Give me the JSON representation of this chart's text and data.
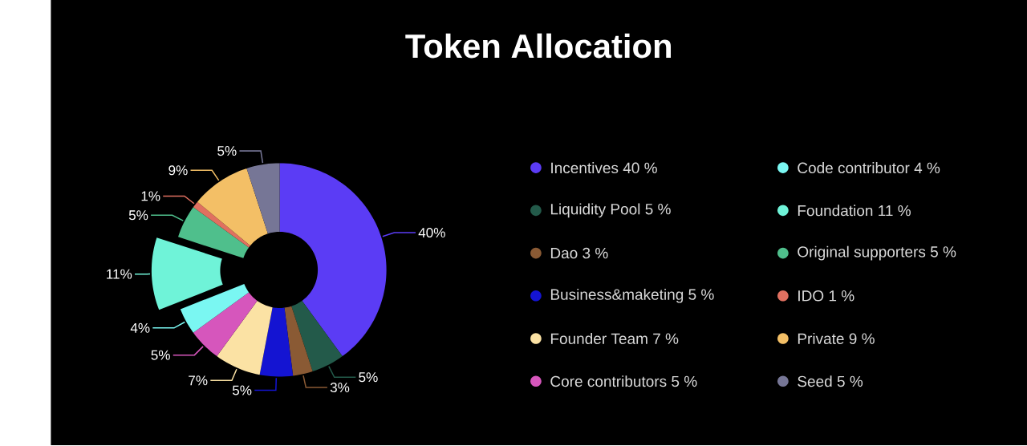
{
  "chart_data": {
    "type": "donut",
    "title": "Token Allocation",
    "categories": [
      "Incentives  40 %",
      "Liquidity Pool  5 %",
      "Dao  3 %",
      "Business&maketing  5 %",
      "Founder Team  7 %",
      "Core contributors  5 %",
      "Code contributor  4 %",
      "Foundation  11 %",
      "Original supporters  5 %",
      "IDO  1 %",
      "Private  9 %",
      "Seed  5 %"
    ],
    "values": [
      40,
      5,
      3,
      5,
      7,
      5,
      4,
      11,
      5,
      1,
      9,
      5
    ],
    "value_labels": [
      "40%",
      "5%",
      "3%",
      "5%",
      "7%",
      "5%",
      "4%",
      "11%",
      "5%",
      "1%",
      "9%",
      "5%"
    ],
    "colors": [
      "#5b3cf5",
      "#235a4a",
      "#8a5a34",
      "#1414d2",
      "#fbe2a4",
      "#d656bc",
      "#7af7f2",
      "#6ff3d8",
      "#4fbf8c",
      "#e07060",
      "#f3bf66",
      "#767696"
    ],
    "legend": "right"
  }
}
